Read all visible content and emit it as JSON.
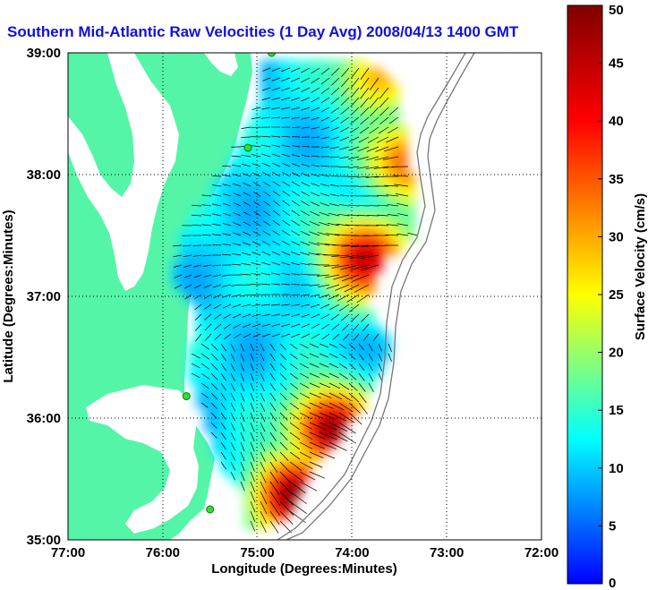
{
  "title": "Southern Mid-Atlantic Raw Velocities (1 Day Avg) 2008/04/13 1400 GMT",
  "x_axis": {
    "label": "Longitude (Degrees:Minutes)",
    "ticks": [
      "77:00",
      "76:00",
      "75:00",
      "74:00",
      "73:00",
      "72:00"
    ],
    "range": [
      -77,
      -72
    ]
  },
  "y_axis": {
    "label": "Latitude (Degrees:Minutes)",
    "ticks": [
      "35:00",
      "36:00",
      "37:00",
      "38:00",
      "39:00"
    ],
    "range": [
      35,
      39
    ]
  },
  "colorbar": {
    "label": "Surface Velocity (cm/s)",
    "ticks": [
      "0",
      "5",
      "10",
      "15",
      "20",
      "25",
      "30",
      "35",
      "40",
      "45",
      "50"
    ],
    "range": [
      0,
      50
    ],
    "colors": [
      "#0000ff",
      "#00ffff",
      "#ffff00",
      "#ff0000",
      "#800000"
    ]
  },
  "colors": {
    "land": "#55f5a8",
    "water": "#ffffff",
    "title": "#1010e0",
    "vectors": "#000000",
    "grid": "#000000"
  },
  "chart_data": {
    "type": "heatmap",
    "title": "Southern Mid-Atlantic Raw Velocities (1 Day Avg) 2008/04/13 1400 GMT",
    "xlabel": "Longitude (Degrees:Minutes)",
    "ylabel": "Latitude (Degrees:Minutes)",
    "colorbar_label": "Surface Velocity (cm/s)",
    "grid": true,
    "hotspots": [
      {
        "lon": -73.85,
        "lat": 37.3,
        "speed": 45
      },
      {
        "lon": -74.2,
        "lat": 35.9,
        "speed": 48
      },
      {
        "lon": -74.6,
        "lat": 35.35,
        "speed": 50
      },
      {
        "lon": -73.4,
        "lat": 38.1,
        "speed": 35
      },
      {
        "lon": -73.7,
        "lat": 38.8,
        "speed": 30
      }
    ],
    "coverage_polygon": [
      [
        -74.95,
        38.95
      ],
      [
        -73.9,
        38.95
      ],
      [
        -73.55,
        38.75
      ],
      [
        -73.4,
        38.1
      ],
      [
        -73.3,
        37.5
      ],
      [
        -73.7,
        37.3
      ],
      [
        -73.85,
        36.9
      ],
      [
        -73.55,
        36.6
      ],
      [
        -73.9,
        36.1
      ],
      [
        -74.2,
        35.8
      ],
      [
        -74.5,
        35.5
      ],
      [
        -74.7,
        35.15
      ],
      [
        -75.1,
        35.1
      ],
      [
        -75.15,
        35.4
      ],
      [
        -75.4,
        35.6
      ],
      [
        -75.6,
        36.1
      ],
      [
        -75.75,
        36.4
      ],
      [
        -75.6,
        36.9
      ],
      [
        -75.9,
        37.1
      ],
      [
        -75.75,
        37.6
      ],
      [
        -75.5,
        37.85
      ],
      [
        -75.2,
        38.2
      ],
      [
        -74.95,
        38.65
      ]
    ],
    "stations": [
      {
        "lon": -74.85,
        "lat": 39.0
      },
      {
        "lon": -75.1,
        "lat": 38.22
      },
      {
        "lon": -75.75,
        "lat": 36.18
      },
      {
        "lon": -75.5,
        "lat": 35.25
      }
    ]
  }
}
